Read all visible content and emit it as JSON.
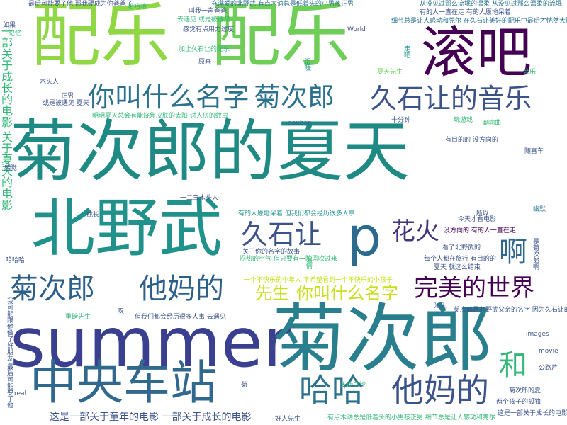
{
  "palette": {
    "bg": "#ffffff",
    "purple": "#440154",
    "indigo": "#3b528b",
    "blue": "#31688e",
    "teal": "#21918c",
    "teal_dark": "#1f7f86",
    "green": "#35b779",
    "lime": "#6ece58",
    "lime_light": "#90d743",
    "yellow": "#c8e020",
    "navy": "#2c3e7c"
  },
  "words": [
    {
      "text": "菊次郎的夏天",
      "color": "#1f8a84"
    },
    {
      "text": "配乐",
      "color": "#8fd744"
    },
    {
      "text": "配乐",
      "color": "#6ece58"
    },
    {
      "text": "滚吧",
      "color": "#440154"
    },
    {
      "text": "北野武",
      "color": "#21918c"
    },
    {
      "text": "summer",
      "color": "#3b3f8f"
    },
    {
      "text": "菊次郎",
      "color": "#2a7f8e"
    },
    {
      "text": "中央车站",
      "color": "#31688e"
    },
    {
      "text": "你叫什么名字",
      "color": "#2c728e"
    },
    {
      "text": "菊次郎",
      "color": "#2c728e"
    },
    {
      "text": "久石让的音乐",
      "color": "#3b528b"
    },
    {
      "text": "久石让",
      "color": "#3b528b"
    },
    {
      "text": "p",
      "color": "#2c6b8e"
    },
    {
      "text": "花火",
      "color": "#46337e"
    },
    {
      "text": "啊",
      "color": "#31688e"
    },
    {
      "text": "菊次郎",
      "color": "#2c5f8a"
    },
    {
      "text": "他妈的",
      "color": "#2c5f8a"
    },
    {
      "text": "先生",
      "color": "#c8e020"
    },
    {
      "text": "你叫什么名字",
      "color": "#c8e020"
    },
    {
      "text": "完美的世界",
      "color": "#440154"
    },
    {
      "text": "和",
      "color": "#35b779"
    },
    {
      "text": "哈哈",
      "color": "#2c728e"
    },
    {
      "text": "他妈的",
      "color": "#3b528b"
    },
    {
      "text": "一部关于成长的电影 关于夏天的电影",
      "color": "#35b779"
    },
    {
      "text": "这是一部关于童年的电影 一部关于成长的电影",
      "color": "#3b528b"
    },
    {
      "text": "最后可能要了他 那我硬成为你爸爸了",
      "color": "#3b528b"
    },
    {
      "text": "哈哈哈",
      "color": "#35b779"
    },
    {
      "text": "充满爱的北野武 有点木讷总是低着头的小男孩正男",
      "color": "#2c728e"
    },
    {
      "text": "从没见过那么流氓的温柔 从没见过那么温柔的流氓",
      "color": "#2c728e"
    },
    {
      "text": "有的人一直在走 有的人原地呆着",
      "color": "#3b528b"
    },
    {
      "text": "细节总是让人感动和莞尔 在久石让美好的配乐中最后才恍然大悟",
      "color": "#2c728e"
    },
    {
      "text": "叫我一声爸爸",
      "color": "#3b528b"
    },
    {
      "text": "去遇见 或是被遇见",
      "color": "#35b779"
    },
    {
      "text": "感觉有点用力过度",
      "color": "#3b528b"
    },
    {
      "text": "加上久石让的配乐",
      "color": "#35b779"
    },
    {
      "text": "原来",
      "color": "#3b528b"
    },
    {
      "text": "温暖",
      "color": "#21918c"
    },
    {
      "text": "走吧",
      "color": "#21918c"
    },
    {
      "text": "音乐",
      "color": "#35b779"
    },
    {
      "text": "夏天先生",
      "color": "#6ece58"
    },
    {
      "text": "木头人",
      "color": "#3b528b"
    },
    {
      "text": "或是被遇见 夏天",
      "color": "#3b528b"
    },
    {
      "text": "明明夏天总会有能烧焦皮肤的太阳 讨人厌的蚊虫",
      "color": "#35b779"
    },
    {
      "text": "douban",
      "color": "#31688e"
    },
    {
      "text": "玩游戏",
      "color": "#35b779"
    },
    {
      "text": "我可能跟他做了好朋友 最后可能要了他",
      "color": "#3b528b"
    },
    {
      "text": "十分钟",
      "color": "#3b528b"
    },
    {
      "text": "奥响曲",
      "color": "#35b779"
    },
    {
      "text": "有目的的 没方向的",
      "color": "#3b528b"
    },
    {
      "text": "随喜车",
      "color": "#3b528b"
    },
    {
      "text": "今天才看电影",
      "color": "#3b528b"
    },
    {
      "text": "幽默",
      "color": "#2c728e"
    },
    {
      "text": "有的人原地呆着 但我们都会经历很多人事",
      "color": "#21918c"
    },
    {
      "text": "没方向的 有的人一直在走",
      "color": "#440154"
    },
    {
      "text": "是菊次郎啊",
      "color": "#3b528b"
    },
    {
      "text": "温情",
      "color": "#35b779"
    },
    {
      "text": "看了北野武的",
      "color": "#3b528b"
    },
    {
      "text": "每个人都在旅行 有目的的",
      "color": "#3b528b"
    },
    {
      "text": "夏天 就这么结束",
      "color": "#3b528b"
    },
    {
      "text": "一个不快乐的中年人 不希望看到一个不快乐的小孩子",
      "color": "#c8e020"
    },
    {
      "text": "但我们都会经历很多人事 去遇见",
      "color": "#3b528b"
    },
    {
      "text": "菊次郎是北野武父亲的名字 因为久石让的",
      "color": "#3b528b"
    },
    {
      "text": "重磅先生",
      "color": "#35b779"
    },
    {
      "text": "好人先生",
      "color": "#3b528b"
    },
    {
      "text": "有点木讷总是低着头的小男孩正男 细节总是让人感动和莞尔",
      "color": "#35b779"
    },
    {
      "text": "菊次郎的夏",
      "color": "#3b528b"
    },
    {
      "text": "这是一部关于成长的电影",
      "color": "#3b528b"
    },
    {
      "text": "images",
      "color": "#3b528b"
    },
    {
      "text": "movie",
      "color": "#3b528b"
    },
    {
      "text": "公路片",
      "color": "#3b528b"
    },
    {
      "text": "World",
      "color": "#3b528b"
    },
    {
      "text": "记忆",
      "color": "#35b779"
    },
    {
      "text": "感觉",
      "color": "#3b528b"
    },
    {
      "text": "如果",
      "color": "#3b528b"
    },
    {
      "text": "哈哈哈",
      "color": "#3b528b"
    },
    {
      "text": "叹",
      "color": "#3b528b"
    },
    {
      "text": "菊",
      "color": "#3b528b"
    },
    {
      "text": "real",
      "color": "#3b528b"
    },
    {
      "text": "光头",
      "color": "#3b528b"
    },
    {
      "text": "所以",
      "color": "#3b528b"
    },
    {
      "text": "天使之铃",
      "color": "#35b779"
    },
    {
      "text": "两个孩子的孤独",
      "color": "#3b528b"
    },
    {
      "text": "闷热的空气 但只要有一阵风吹过来",
      "color": "#35b779"
    },
    {
      "text": "关于你的名字的故事",
      "color": "#3b528b"
    },
    {
      "text": "正男",
      "color": "#3b528b"
    },
    {
      "text": "大使",
      "color": "#3b528b"
    },
    {
      "text": "成长",
      "color": "#3b528b"
    },
    {
      "text": "一二三木头人",
      "color": "#3b528b"
    }
  ]
}
